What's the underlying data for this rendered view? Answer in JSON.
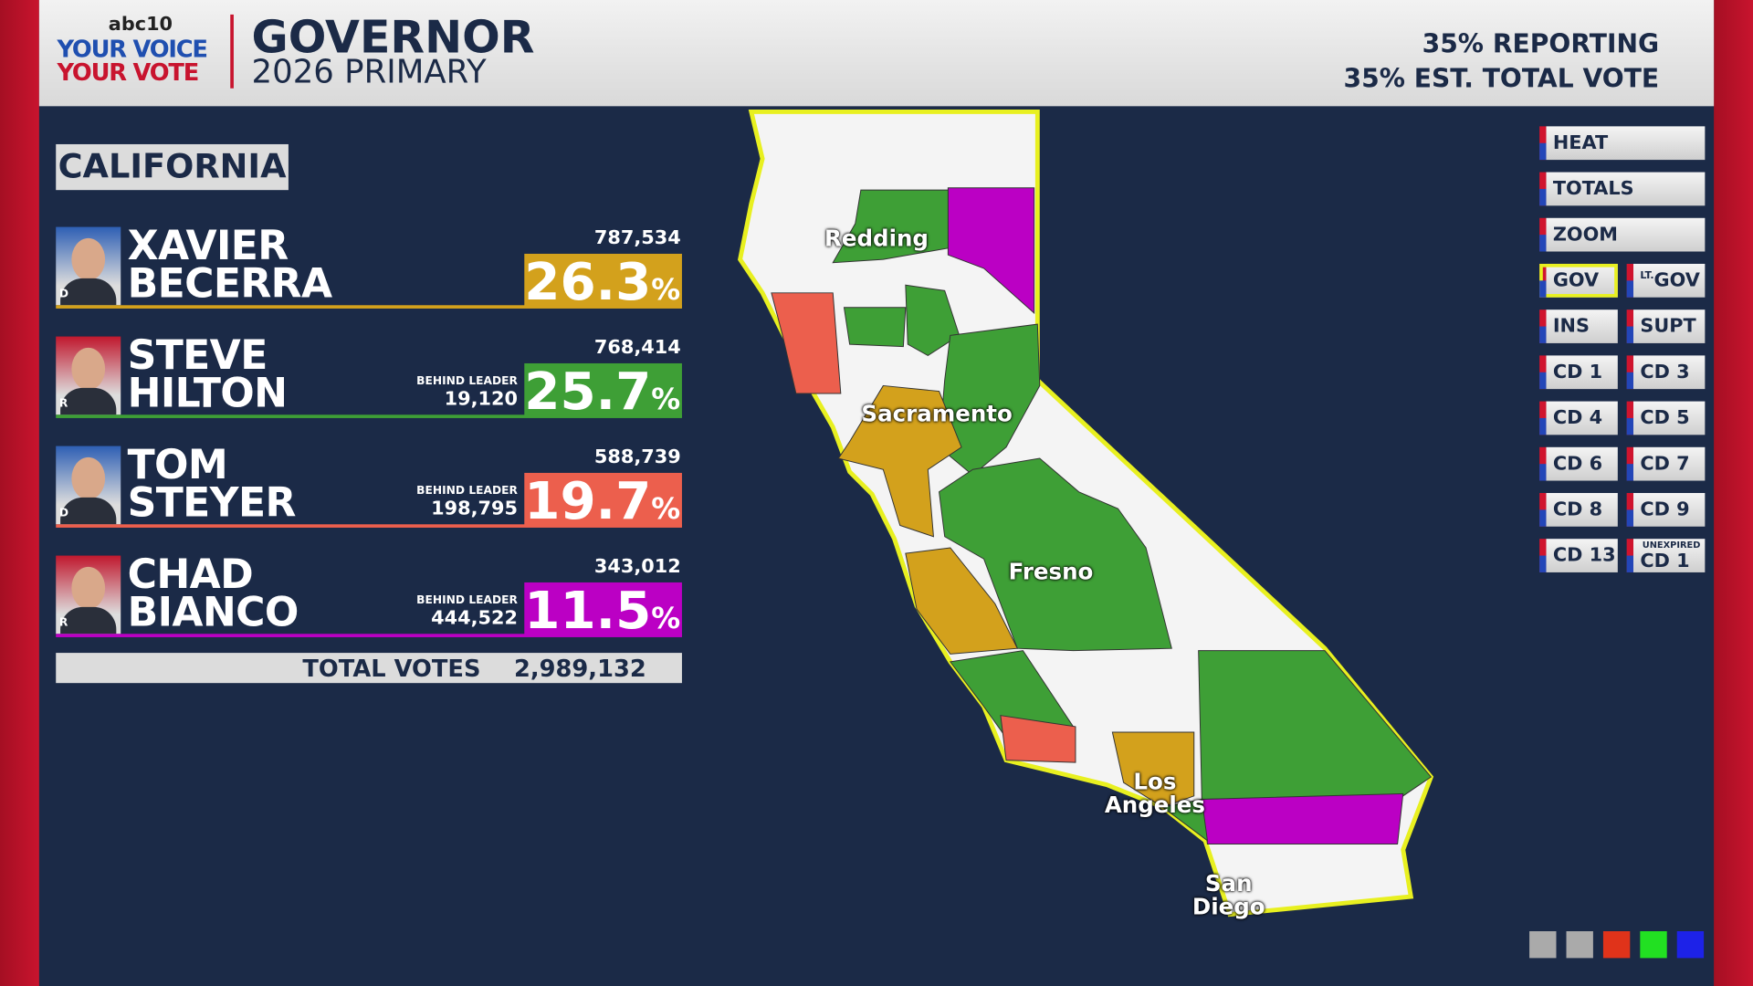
{
  "header": {
    "logo": {
      "station": "abc10",
      "line1": "YOUR VOICE",
      "line2": "YOUR VOTE"
    },
    "title": "GOVERNOR",
    "subtitle": "2026 PRIMARY",
    "reporting": "35% REPORTING",
    "est_vote": "35% EST. TOTAL VOTE"
  },
  "results": {
    "region": "CALIFORNIA",
    "behind_label": "BEHIND LEADER",
    "pct_sign": "%",
    "candidates": [
      {
        "first": "XAVIER",
        "last": "BECERRA",
        "party": "D",
        "votes": "787,534",
        "behind": null,
        "pct": "26.3",
        "color": "#d3a11c",
        "photo_color": "#2e5fb4"
      },
      {
        "first": "STEVE",
        "last": "HILTON",
        "party": "R",
        "votes": "768,414",
        "behind": "19,120",
        "pct": "25.7",
        "color": "#3e9f36",
        "photo_color": "#c0182e"
      },
      {
        "first": "TOM",
        "last": "STEYER",
        "party": "D",
        "votes": "588,739",
        "behind": "198,795",
        "pct": "19.7",
        "color": "#ec5f4d",
        "photo_color": "#2e5fb4"
      },
      {
        "first": "CHAD",
        "last": "BIANCO",
        "party": "R",
        "votes": "343,012",
        "behind": "444,522",
        "pct": "11.5",
        "color": "#bb00c4",
        "photo_color": "#c0182e"
      }
    ],
    "total_label": "TOTAL VOTES",
    "total_votes": "2,989,132"
  },
  "map": {
    "labels": [
      {
        "lines": [
          "Redding"
        ]
      },
      {
        "lines": [
          "Sacramento"
        ]
      },
      {
        "lines": [
          "Fresno"
        ]
      },
      {
        "lines": [
          "Los",
          "Angeles"
        ]
      },
      {
        "lines": [
          "San",
          "Diego"
        ]
      }
    ]
  },
  "buttons": [
    {
      "label": "HEAT"
    },
    {
      "label": "TOTALS"
    },
    {
      "label": "ZOOM"
    },
    {
      "label": "GOV",
      "active": true
    },
    {
      "label": "GOV",
      "prefix": "LT."
    },
    {
      "label": "INS"
    },
    {
      "label": "SUPT"
    },
    {
      "label": "CD 1"
    },
    {
      "label": "CD 3"
    },
    {
      "label": "CD 4"
    },
    {
      "label": "CD 5"
    },
    {
      "label": "CD 6"
    },
    {
      "label": "CD 7"
    },
    {
      "label": "CD 8"
    },
    {
      "label": "CD 9"
    },
    {
      "label": "CD 13"
    },
    {
      "label": "CD 1",
      "prefix": "UNEXPIRED"
    }
  ]
}
